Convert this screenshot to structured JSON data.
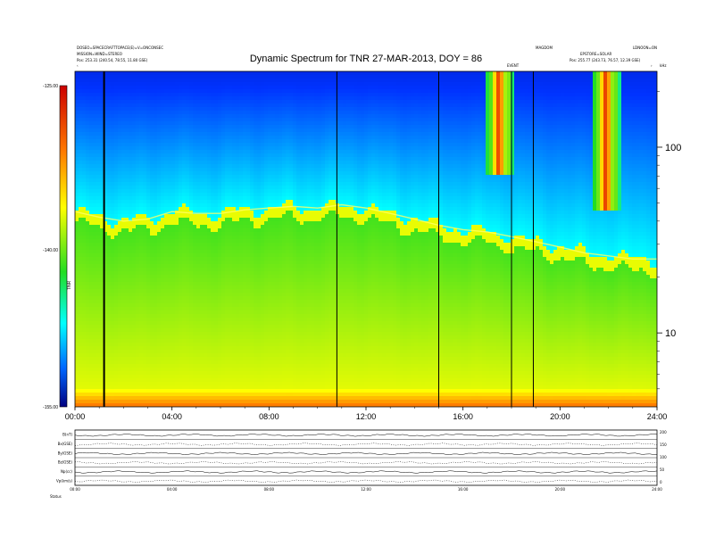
{
  "header": {
    "title": "Dynamic Spectrum for TNR 27-MAR-2013, DOY = 86",
    "info_left_1": "DOSEO=SPACECRAFTTOPACE(E)=V=ONCONSEC",
    "info_left_2": "MISSION=WIND=STEREO",
    "pos_left": "Pos:  253.31 (240.54, 78.55, 11.80 GSE)",
    "info_right_1": "MAGDOM",
    "info_right_2": "LDNOON=ON",
    "info_right_3": "EPSTORE=SOLAR",
    "pos_right": "Pos:  255.77 (243.73, 76.57, 12.39 GSE)",
    "event_label": "EVENT",
    "top_right_tag": "kHz"
  },
  "colorbar": {
    "ticks": [
      "-125.00",
      "-140.00",
      "-155.00"
    ],
    "unit_label": "TNR"
  },
  "chart_data": {
    "type": "heatmap",
    "title": "Dynamic Spectrum for TNR 27-MAR-2013, DOY = 86",
    "x_ticks": [
      "00:00",
      "04:00",
      "08:00",
      "12:00",
      "16:00",
      "20:00",
      "24:00"
    ],
    "x_range_hours": [
      0,
      24
    ],
    "y_scale": "log",
    "y_unit": "kHz",
    "y_ticks": [
      10,
      100
    ],
    "y_range_khz": [
      4,
      256
    ],
    "color_scale": {
      "min": -155.0,
      "max": -125.0,
      "unit": "TNR"
    },
    "plasma_line_khz": [
      [
        0,
        45
      ],
      [
        1,
        42
      ],
      [
        2,
        40
      ],
      [
        3,
        41
      ],
      [
        4,
        45
      ],
      [
        5,
        44
      ],
      [
        6,
        44
      ],
      [
        7,
        46
      ],
      [
        8,
        47
      ],
      [
        9,
        48
      ],
      [
        10,
        47
      ],
      [
        11,
        49
      ],
      [
        12,
        47
      ],
      [
        13,
        44
      ],
      [
        14,
        41
      ],
      [
        15,
        38
      ],
      [
        16,
        36
      ],
      [
        17,
        35
      ],
      [
        18,
        33
      ],
      [
        19,
        31
      ],
      [
        20,
        29
      ],
      [
        21,
        27
      ],
      [
        22,
        26
      ],
      [
        23,
        25
      ],
      [
        24,
        25
      ]
    ],
    "data_gaps_hours": [
      1.2,
      10.8,
      15.0,
      18.0,
      18.9
    ],
    "bursts": [
      {
        "start_hour": 16.9,
        "end_hour": 18.1,
        "min_khz": 70
      },
      {
        "start_hour": 21.3,
        "end_hour": 22.5,
        "min_khz": 45
      }
    ]
  },
  "lower_panel": {
    "rows": [
      "B(nT)",
      "Bx(GSE)",
      "By(GSE)",
      "Bz(GSE)",
      "Np(cc)",
      "Vp(km/s)"
    ],
    "right_scale": [
      "200",
      "150",
      "100",
      "50",
      "0"
    ],
    "x_ticks": [
      "00:00",
      "04:00",
      "08:00",
      "12:00",
      "16:00",
      "20:00",
      "24:00"
    ],
    "footer": "Status"
  }
}
